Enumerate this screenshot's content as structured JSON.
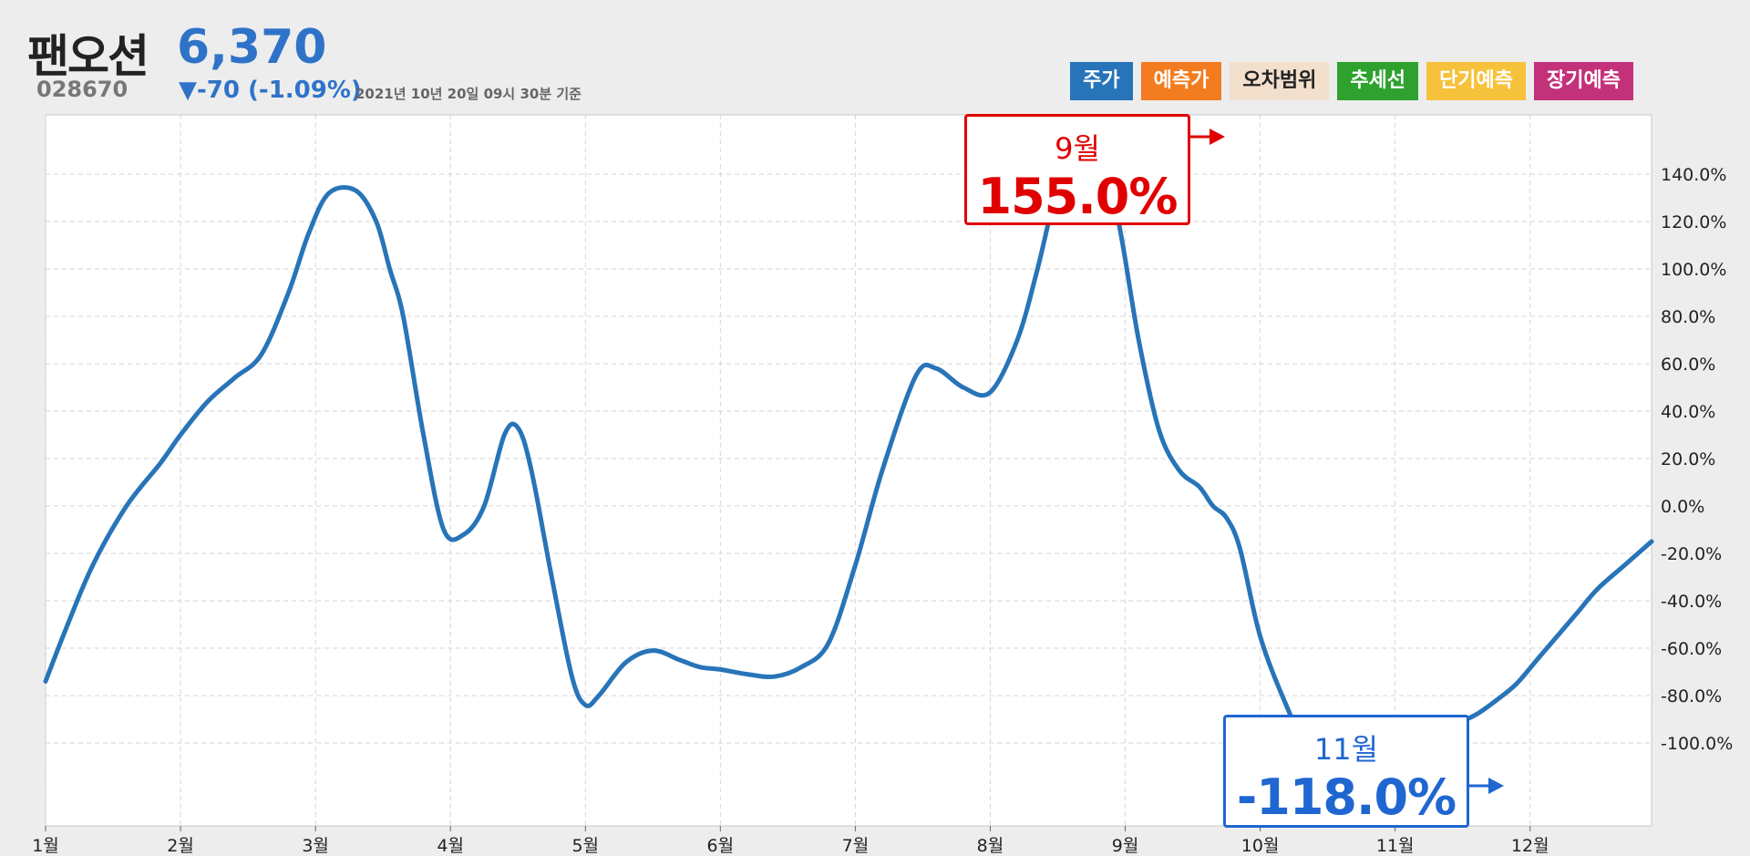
{
  "header": {
    "name": "팬오션",
    "price": "6,370",
    "code": "028670",
    "change": "▼-70 (-1.09%)",
    "as_of": "2021년 10년 20일 09시 30분 기준"
  },
  "legend": [
    {
      "label": "주가",
      "color": "#2874b8"
    },
    {
      "label": "예측가",
      "color": "#f47c20"
    },
    {
      "label": "오차범위",
      "color": "#f2dfcc",
      "text_color": "#222222"
    },
    {
      "label": "추세선",
      "color": "#2ea12e"
    },
    {
      "label": "단기예측",
      "color": "#f6c23b"
    },
    {
      "label": "장기예측",
      "color": "#c4317b"
    }
  ],
  "callouts": {
    "peak": {
      "month": "9월",
      "value": "155.0%",
      "color": "#e00000"
    },
    "trough": {
      "month": "11월",
      "value": "-118.0%",
      "color": "#1f66d1"
    }
  },
  "chart_data": {
    "type": "line",
    "line_color": "#2874b8",
    "grid": true,
    "x_ticks": [
      "1월",
      "2월",
      "3월",
      "4월",
      "5월",
      "6월",
      "7월",
      "8월",
      "9월",
      "10월",
      "11월",
      "12월"
    ],
    "y_ticks": [
      "140.0%",
      "120.0%",
      "100.0%",
      "80.0%",
      "60.0%",
      "40.0%",
      "20.0%",
      "0.0%",
      "-20.0%",
      "-40.0%",
      "-60.0%",
      "-80.0%",
      "-100.0%"
    ],
    "y_tick_values": [
      140,
      120,
      100,
      80,
      60,
      40,
      20,
      0,
      -20,
      -40,
      -60,
      -80,
      -100
    ],
    "xlim": [
      1,
      12.9
    ],
    "ylim": [
      -135,
      165
    ],
    "series": [
      {
        "x": [
          1.0,
          1.15,
          1.35,
          1.6,
          1.85,
          2.0,
          2.2,
          2.4,
          2.6,
          2.8,
          2.95,
          3.1,
          3.3,
          3.45,
          3.55,
          3.65,
          3.8,
          3.95,
          4.1,
          4.25,
          4.4,
          4.5,
          4.6,
          4.75,
          4.9,
          5.0,
          5.1,
          5.3,
          5.5,
          5.7,
          5.85,
          6.0,
          6.2,
          6.4,
          6.6,
          6.8,
          7.0,
          7.2,
          7.45,
          7.6,
          7.8,
          8.0,
          8.2,
          8.35,
          8.5,
          8.65,
          8.8,
          8.95,
          9.1,
          9.25,
          9.4,
          9.55,
          9.65,
          9.75,
          9.85,
          10.0,
          10.2,
          10.4,
          10.55,
          10.7,
          10.9,
          11.0,
          11.15,
          11.3,
          11.45,
          11.6,
          11.75,
          11.9,
          12.05,
          12.2,
          12.35,
          12.5,
          12.7,
          12.8,
          12.9
        ],
        "y": [
          -74,
          -52,
          -25,
          0,
          18,
          30,
          44,
          54,
          64,
          90,
          115,
          132,
          133,
          120,
          100,
          80,
          30,
          -10,
          -12,
          0,
          30,
          33,
          15,
          -30,
          -72,
          -84,
          -80,
          -66,
          -61,
          -65,
          -68,
          -69,
          -71,
          -72,
          -68,
          -58,
          -25,
          15,
          55,
          58,
          50,
          48,
          70,
          100,
          135,
          155,
          152,
          120,
          70,
          32,
          15,
          8,
          0,
          -5,
          -18,
          -55,
          -85,
          -109,
          -117,
          -116,
          -108,
          -102,
          -98,
          -96,
          -92,
          -88,
          -82,
          -75,
          -65,
          -55,
          -45,
          -35,
          -25,
          -20,
          -15
        ]
      }
    ]
  }
}
